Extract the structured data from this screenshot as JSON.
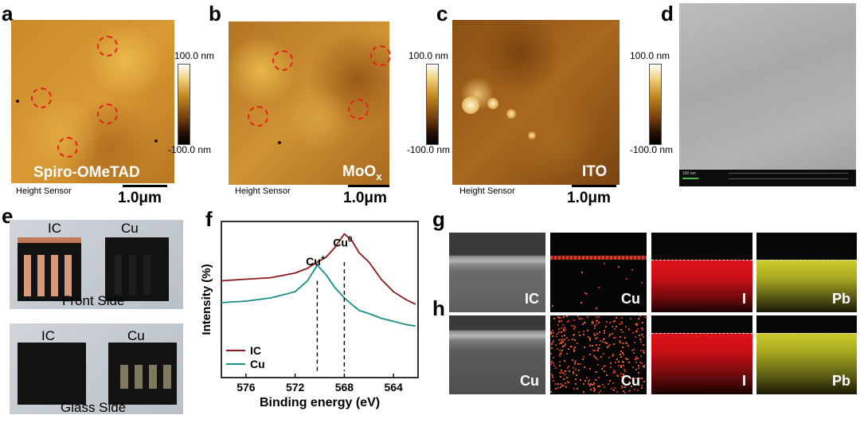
{
  "panels": {
    "a": {
      "letter": "a",
      "overlay": "Spiro-OMeTAD",
      "sensor": "Height Sensor",
      "scale": "1.0μm"
    },
    "b": {
      "letter": "b",
      "overlay_main": "MoO",
      "overlay_sub": "x",
      "sensor": "Height Sensor",
      "scale": "1.0μm"
    },
    "c": {
      "letter": "c",
      "overlay": "ITO",
      "sensor": "Height Sensor",
      "scale": "1.0μm"
    },
    "d": {
      "letter": "d",
      "sem_scale": "100 nm"
    },
    "e": {
      "letter": "e",
      "top_left": "IC",
      "top_right": "Cu",
      "top_caption": "Front Side",
      "bottom_left": "IC",
      "bottom_right": "Cu",
      "bottom_caption": "Glass Side"
    },
    "f": {
      "letter": "f"
    },
    "g": {
      "letter": "g",
      "labels": [
        "IC",
        "Cu",
        "I",
        "Pb"
      ]
    },
    "h": {
      "letter": "h",
      "labels": [
        "Cu",
        "Cu",
        "I",
        "Pb"
      ]
    }
  },
  "colorbar": {
    "max": "100.0 nm",
    "min": "-100.0 nm",
    "max_c": "100.0 nm",
    "min_c": "-100.0 nm"
  },
  "colors": {
    "ic": "#8b1a1a",
    "cu": "#17908a",
    "circle": "#e3201b"
  },
  "chart_data": {
    "type": "line",
    "title": "",
    "xlabel": "Binding energy (eV)",
    "ylabel": "Intensity (%)",
    "xlim": [
      578,
      562
    ],
    "ylim": [
      0,
      1
    ],
    "xticks": [
      576,
      572,
      568,
      564
    ],
    "tick_labels": [
      "576",
      "572",
      "568",
      "564"
    ],
    "annotations": [
      {
        "text": "Cu",
        "sup": "+",
        "x": 570.2
      },
      {
        "text": "Cu",
        "sup": "0",
        "x": 568.0
      }
    ],
    "series": [
      {
        "name": "IC",
        "x": [
          578,
          576,
          574,
          572,
          571,
          570.2,
          569.5,
          568.8,
          568.0,
          567.4,
          566.8,
          566.0,
          565.0,
          564.0,
          563.0,
          562.2
        ],
        "y": [
          0.62,
          0.63,
          0.64,
          0.67,
          0.7,
          0.74,
          0.77,
          0.83,
          0.92,
          0.88,
          0.8,
          0.74,
          0.63,
          0.55,
          0.5,
          0.47
        ]
      },
      {
        "name": "Cu",
        "x": [
          578,
          576,
          574,
          572,
          571,
          570.2,
          569.5,
          568.8,
          568.0,
          567.4,
          566.8,
          566.0,
          565.0,
          564.0,
          563.0,
          562.2
        ],
        "y": [
          0.48,
          0.49,
          0.51,
          0.55,
          0.62,
          0.72,
          0.66,
          0.58,
          0.51,
          0.47,
          0.43,
          0.41,
          0.38,
          0.36,
          0.34,
          0.33
        ]
      }
    ],
    "legend": "bottom-left"
  }
}
